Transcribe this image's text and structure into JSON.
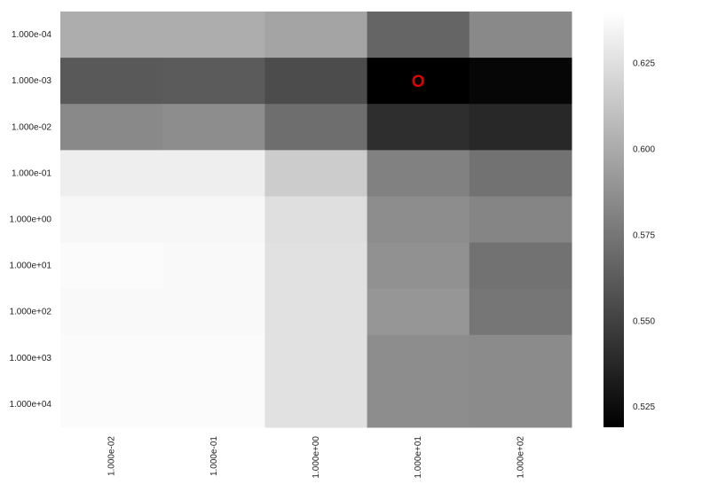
{
  "chart_data": {
    "type": "heatmap",
    "colormap": "gray",
    "x_categories": [
      "1.000e-02",
      "1.000e-01",
      "1.000e+00",
      "1.000e+01",
      "1.000e+02"
    ],
    "y_categories": [
      "1.000e-04",
      "1.000e-03",
      "1.000e-02",
      "1.000e-01",
      "1.000e+00",
      "1.000e+01",
      "1.000e+02",
      "1.000e+03",
      "1.000e+04"
    ],
    "values": [
      [
        0.601,
        0.601,
        0.597,
        0.567,
        0.584
      ],
      [
        0.561,
        0.562,
        0.555,
        0.519,
        0.522
      ],
      [
        0.584,
        0.586,
        0.571,
        0.541,
        0.538
      ],
      [
        0.632,
        0.632,
        0.616,
        0.58,
        0.573
      ],
      [
        0.636,
        0.636,
        0.625,
        0.586,
        0.582
      ],
      [
        0.638,
        0.637,
        0.626,
        0.588,
        0.573
      ],
      [
        0.637,
        0.637,
        0.626,
        0.59,
        0.575
      ],
      [
        0.638,
        0.638,
        0.626,
        0.586,
        0.585
      ],
      [
        0.638,
        0.638,
        0.626,
        0.586,
        0.585
      ]
    ],
    "vmin": 0.519,
    "vmax": 0.64,
    "colorbar_ticks": [
      0.525,
      0.55,
      0.575,
      0.6,
      0.625
    ],
    "colorbar_tick_labels": [
      "0.525",
      "0.550",
      "0.575",
      "0.600",
      "0.625"
    ],
    "marker": {
      "text": "O",
      "row": 1,
      "col": 3,
      "color": "#e00000"
    },
    "title": "",
    "xlabel": "",
    "ylabel": ""
  }
}
